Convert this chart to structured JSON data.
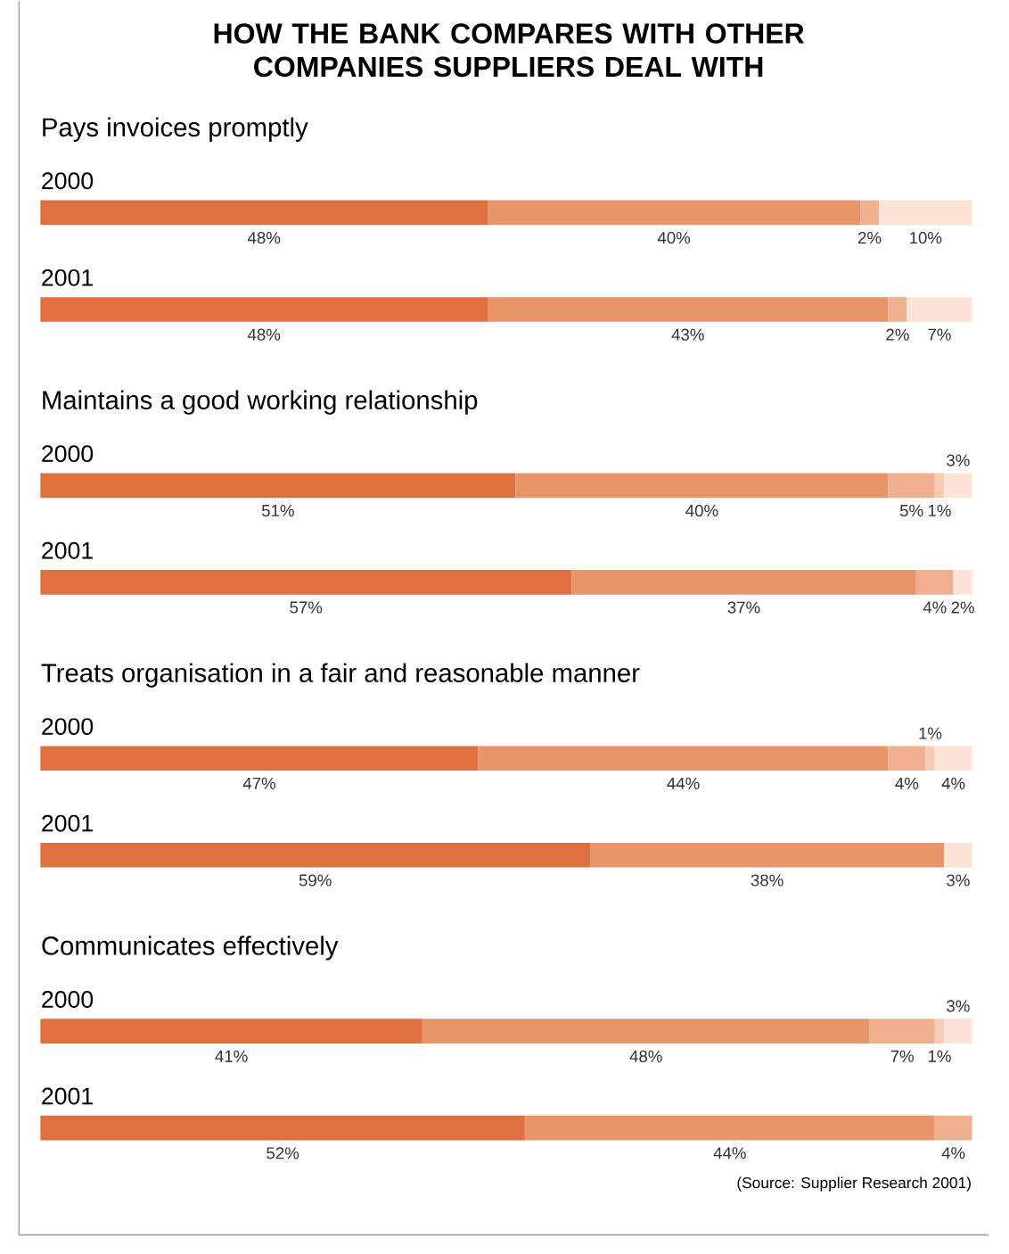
{
  "chart_data": {
    "type": "bar",
    "orientation": "horizontal",
    "stacked": true,
    "title": "HOW THE BANK COMPARES WITH OTHER COMPANIES SUPPLIERS DEAL WITH",
    "categories": [
      "2000",
      "2001",
      "2000",
      "2001",
      "2000",
      "2001",
      "2000",
      "2001"
    ],
    "series": [
      {
        "color": "#e07040",
        "values": [
          48,
          48,
          51,
          57,
          47,
          59,
          41,
          52
        ],
        "value_labels": [
          "48%",
          "48%",
          "51%",
          "57%",
          "47%",
          "59%",
          "41%",
          "52%"
        ]
      },
      {
        "color": "#e9956a",
        "values": [
          40,
          43,
          40,
          37,
          44,
          38,
          48,
          44
        ],
        "value_labels": [
          "40%",
          "43%",
          "40%",
          "37%",
          "44%",
          "38%",
          "48%",
          "44%"
        ]
      },
      {
        "color": "#eeb08e",
        "values": [
          2,
          2,
          5,
          4,
          4,
          null,
          7,
          4
        ],
        "value_labels": [
          "2%",
          "2%",
          "5%",
          "4%",
          "4%",
          null,
          "7%",
          "4%"
        ]
      },
      {
        "color": "#f5cdb4",
        "values": [
          null,
          null,
          1,
          null,
          1,
          null,
          1,
          null
        ],
        "value_labels": [
          null,
          null,
          "1%",
          null,
          "1%",
          null,
          "1%",
          null
        ]
      },
      {
        "color": "#fbe4d6",
        "values": [
          10,
          7,
          3,
          2,
          4,
          3,
          3,
          null
        ],
        "value_labels": [
          "10%",
          "7%",
          "3%",
          "2%",
          "4%",
          "3%",
          "3%",
          null
        ]
      }
    ],
    "annotations": [
      "Pays invoices promptly",
      "Maintains a good working relationship",
      "Treats organisation in a fair and reasonable manner",
      "Communicates effectively",
      "(Source: Supplier Research 2001)"
    ]
  }
}
